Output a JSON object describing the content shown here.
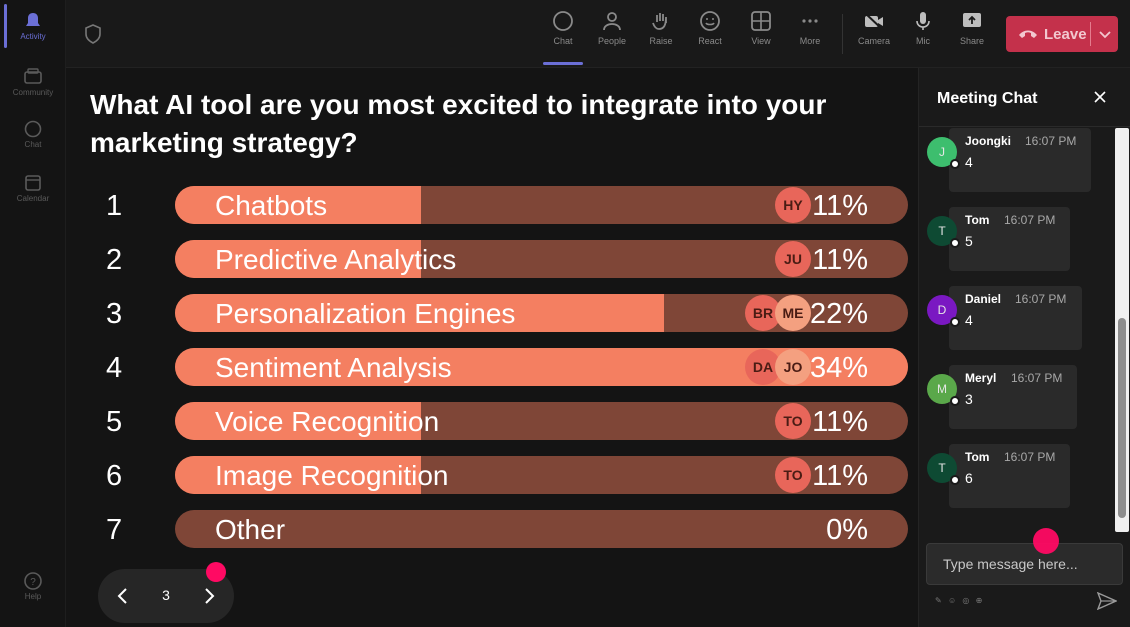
{
  "rail": {
    "items": [
      {
        "label": "Activity",
        "icon": "bell-icon"
      },
      {
        "label": "Community",
        "icon": "community-icon"
      },
      {
        "label": "Chat",
        "icon": "chat-icon"
      },
      {
        "label": "Calendar",
        "icon": "calendar-icon"
      },
      {
        "label": "Help",
        "icon": "help-icon"
      }
    ]
  },
  "toolbar": {
    "chat": "Chat",
    "people": "People",
    "raise": "Raise",
    "react": "React",
    "view": "View",
    "more": "More",
    "camera": "Camera",
    "mic": "Mic",
    "share": "Share",
    "leave": "Leave"
  },
  "poll": {
    "question": "What AI tool are you most excited to integrate into your marketing strategy?",
    "options": [
      {
        "num": "1",
        "label": "Chatbots",
        "pct": "11%",
        "fill": 0.335,
        "avatars": [
          "HY"
        ]
      },
      {
        "num": "2",
        "label": "Predictive Analytics",
        "pct": "11%",
        "fill": 0.335,
        "avatars": [
          "JU"
        ]
      },
      {
        "num": "3",
        "label": "Personalization Engines",
        "pct": "22%",
        "fill": 0.667,
        "avatars": [
          "BR",
          "ME"
        ]
      },
      {
        "num": "4",
        "label": "Sentiment Analysis",
        "pct": "34%",
        "fill": 1.0,
        "avatars": [
          "DA",
          "JO"
        ]
      },
      {
        "num": "5",
        "label": "Voice Recognition",
        "pct": "11%",
        "fill": 0.335,
        "avatars": [
          "TO"
        ]
      },
      {
        "num": "6",
        "label": "Image Recognition",
        "pct": "11%",
        "fill": 0.335,
        "avatars": [
          "TO"
        ]
      },
      {
        "num": "7",
        "label": "Other",
        "pct": "0%",
        "fill": 0.0,
        "avatars": []
      }
    ]
  },
  "pager": {
    "page": "3"
  },
  "chat": {
    "title": "Meeting Chat",
    "messages": [
      {
        "initial": "J",
        "name": "Joongki",
        "time": "16:07 PM",
        "text": "4",
        "color": "#3dbe6e"
      },
      {
        "initial": "T",
        "name": "Tom",
        "time": "16:07 PM",
        "text": "5",
        "color": "#0e4a33"
      },
      {
        "initial": "D",
        "name": "Daniel",
        "time": "16:07 PM",
        "text": "4",
        "color": "#7a18c2"
      },
      {
        "initial": "M",
        "name": "Meryl",
        "time": "16:07 PM",
        "text": "3",
        "color": "#5aa84a"
      },
      {
        "initial": "T",
        "name": "Tom",
        "time": "16:07 PM",
        "text": "6",
        "color": "#0e4a33"
      }
    ],
    "input_placeholder": "Type message here..."
  },
  "colors": {
    "accent": "#6b6fd6",
    "leave": "#c4314b",
    "bar_fill": "#f47f61",
    "bar_bg": "#7f4637",
    "marker": "#ff0a63"
  }
}
